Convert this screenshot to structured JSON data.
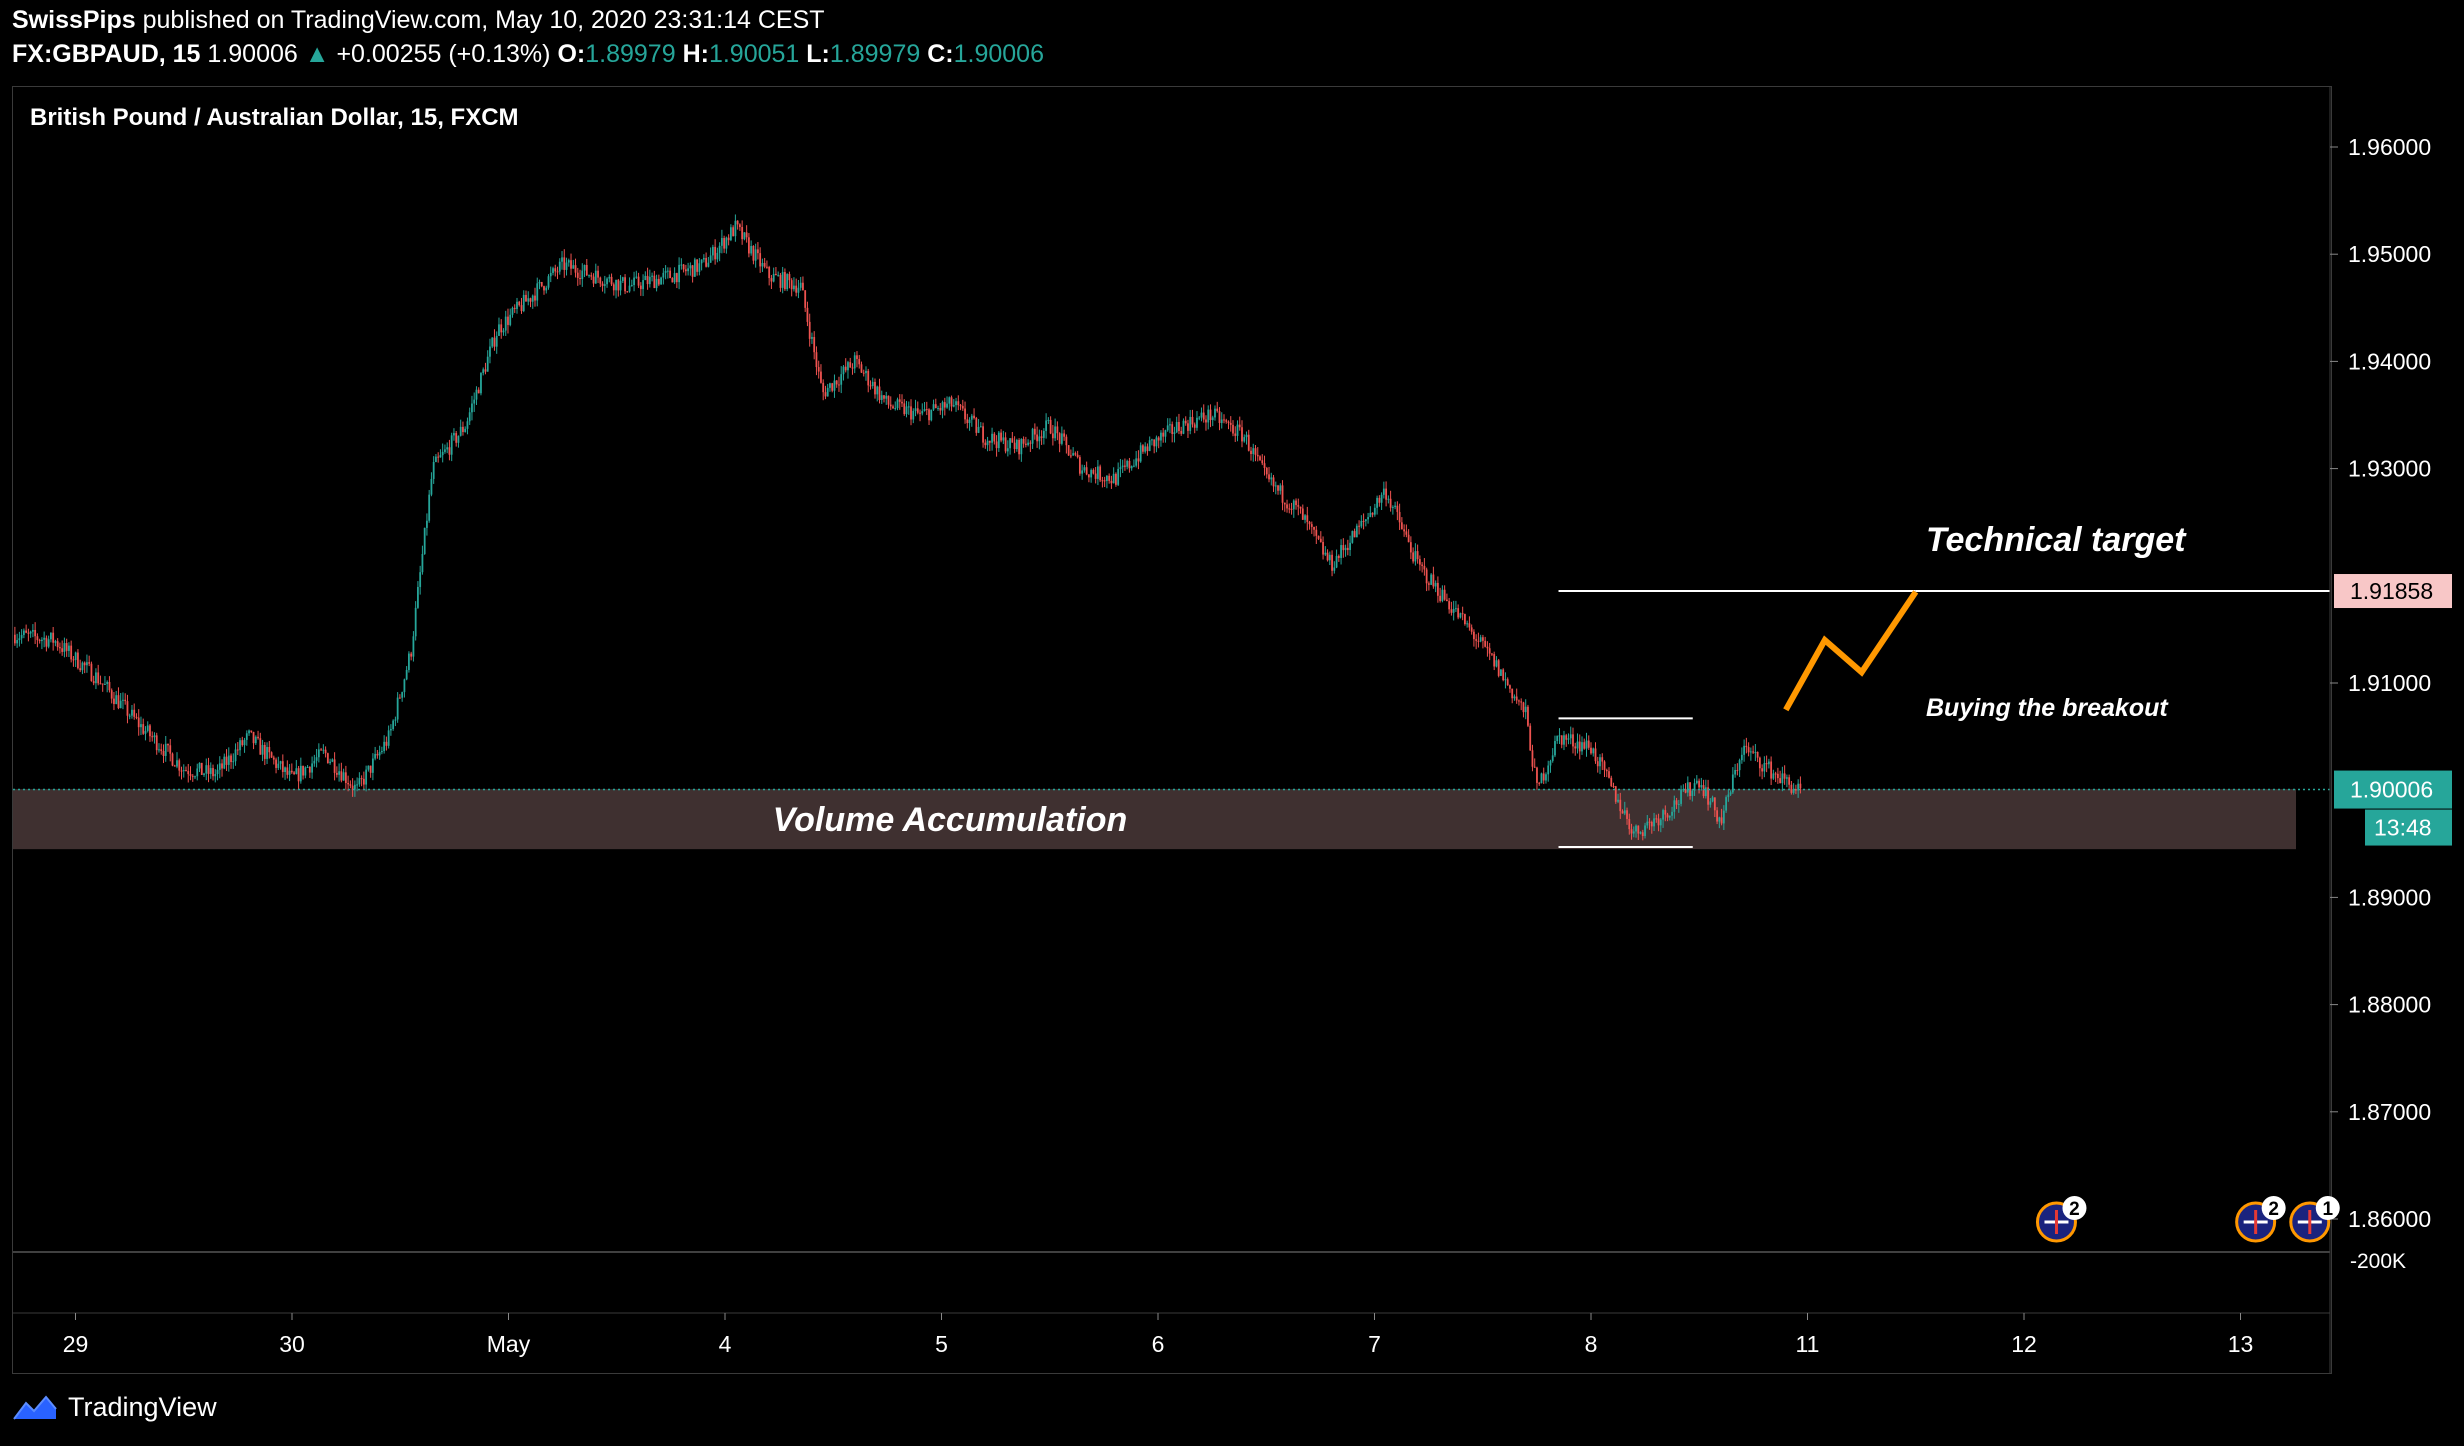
{
  "header": {
    "publisher": "SwissPips",
    "published_text": " published on TradingView.com, May 10, 2020 23:31:14 CEST",
    "symbol": "FX:GBPAUD, 15",
    "last": "1.90006",
    "arrow": "▲",
    "change": "+0.00255 (+0.13%)",
    "o_label": "O:",
    "o_value": "1.89979",
    "h_label": "H:",
    "h_value": "1.90051",
    "l_label": "L:",
    "l_value": "1.89979",
    "c_label": "C:",
    "c_value": "1.90006"
  },
  "chart_title": "British Pound / Australian Dollar, 15, FXCM",
  "footer": {
    "brand": "TradingView",
    "logo_icon": "tradingview-logo-icon"
  },
  "colors": {
    "up": "#26a69a",
    "down": "#ef5350",
    "accumulation_zone": "#4a3838",
    "target_label_bg": "#f8c7c7",
    "arrow": "#ff9800"
  },
  "chart_data": {
    "type": "candlestick",
    "title": "British Pound / Australian Dollar, 15, FXCM",
    "ylim": [
      1.853,
      1.9653
    ],
    "y_ticks": [
      "1.96000",
      "1.95000",
      "1.94000",
      "1.93000",
      "1.91000",
      "1.89000",
      "1.88000",
      "1.87000",
      "1.86000"
    ],
    "x_ticks": [
      {
        "label": "29",
        "day": -3
      },
      {
        "label": "30",
        "day": -2
      },
      {
        "label": "May",
        "day": -1
      },
      {
        "label": "4",
        "day": 0
      },
      {
        "label": "5",
        "day": 1
      },
      {
        "label": "6",
        "day": 2
      },
      {
        "label": "7",
        "day": 3
      },
      {
        "label": "8",
        "day": 4
      },
      {
        "label": "11",
        "day": 5
      },
      {
        "label": "12",
        "day": 6
      },
      {
        "label": "13",
        "day": 7
      }
    ],
    "price_path": [
      [
        -3.28,
        1.9145
      ],
      [
        -3.1,
        1.914
      ],
      [
        -2.9,
        1.9105
      ],
      [
        -2.7,
        1.906
      ],
      [
        -2.5,
        1.902
      ],
      [
        -2.35,
        1.9015
      ],
      [
        -2.2,
        1.905
      ],
      [
        -2.0,
        1.901
      ],
      [
        -1.85,
        1.9035
      ],
      [
        -1.7,
        1.9
      ],
      [
        -1.55,
        1.905
      ],
      [
        -1.45,
        1.913
      ],
      [
        -1.35,
        1.93
      ],
      [
        -1.2,
        1.934
      ],
      [
        -1.05,
        1.943
      ],
      [
        -0.9,
        1.946
      ],
      [
        -0.75,
        1.949
      ],
      [
        -0.6,
        1.948
      ],
      [
        -0.45,
        1.947
      ],
      [
        -0.25,
        1.948
      ],
      [
        -0.1,
        1.949
      ],
      [
        0.05,
        1.9525
      ],
      [
        0.2,
        1.948
      ],
      [
        0.35,
        1.947
      ],
      [
        0.45,
        1.937
      ],
      [
        0.6,
        1.94
      ],
      [
        0.75,
        1.936
      ],
      [
        0.9,
        1.935
      ],
      [
        1.05,
        1.936
      ],
      [
        1.2,
        1.933
      ],
      [
        1.35,
        1.932
      ],
      [
        1.5,
        1.934
      ],
      [
        1.65,
        1.93
      ],
      [
        1.8,
        1.929
      ],
      [
        1.95,
        1.932
      ],
      [
        2.1,
        1.934
      ],
      [
        2.25,
        1.935
      ],
      [
        2.4,
        1.933
      ],
      [
        2.5,
        1.929
      ],
      [
        2.65,
        1.926
      ],
      [
        2.8,
        1.921
      ],
      [
        2.95,
        1.925
      ],
      [
        3.05,
        1.928
      ],
      [
        3.2,
        1.921
      ],
      [
        3.4,
        1.916
      ],
      [
        3.55,
        1.912
      ],
      [
        3.7,
        1.907
      ],
      [
        3.75,
        1.9
      ],
      [
        3.85,
        1.905
      ],
      [
        4.0,
        1.904
      ],
      [
        4.1,
        1.9
      ],
      [
        4.2,
        1.896
      ],
      [
        4.35,
        1.898
      ],
      [
        4.5,
        1.901
      ],
      [
        4.6,
        1.897
      ],
      [
        4.7,
        1.904
      ],
      [
        4.85,
        1.9015
      ],
      [
        4.97,
        1.89979
      ]
    ],
    "last_price": "1.90006",
    "countdown": "13:48",
    "target_price": "1.91858",
    "secondary_axis_label": "-200K",
    "zone": {
      "label": "Volume Accumulation",
      "from": 1.8945,
      "to": 1.9001
    },
    "levels": [
      {
        "price": 1.91858,
        "from_day": 3.85,
        "to_day": 5.5
      },
      {
        "price": 1.9067,
        "from_day": 3.85,
        "to_day": 4.47
      },
      {
        "price": 1.8947,
        "from_day": 3.85,
        "to_day": 4.47
      }
    ],
    "annotations": [
      {
        "text": "Technical target"
      },
      {
        "text": "Buying the breakout"
      }
    ],
    "projection": [
      [
        4.9,
        1.9075
      ],
      [
        5.08,
        1.914
      ],
      [
        5.25,
        1.911
      ],
      [
        5.5,
        1.9185
      ]
    ],
    "events": [
      {
        "label": "2",
        "day": 6.15,
        "flag": "au-flag-icon"
      },
      {
        "label": "2",
        "day": 7.07,
        "flag": "uk-flag-icon"
      },
      {
        "label": "1",
        "day": 7.32,
        "flag": "uk-flag-icon"
      }
    ]
  }
}
